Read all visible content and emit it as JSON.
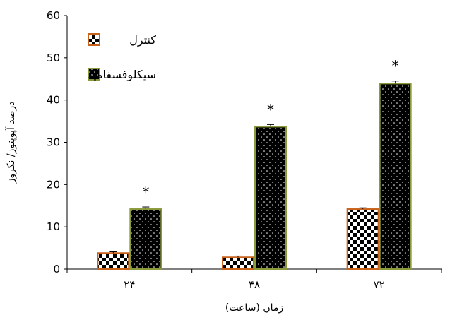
{
  "chart_data": {
    "type": "bar",
    "categories": [
      "۲۴",
      "۴۸",
      "۷۲"
    ],
    "xlabel": "زمان (ساعت)",
    "ylabel": "درصد آپوپتوز/ نکروز",
    "ylim": [
      0,
      60
    ],
    "yticks": [
      0,
      10,
      20,
      30,
      40,
      50,
      60
    ],
    "grid": false,
    "legend_position": "top-left",
    "series": [
      {
        "name": "کنترل",
        "values": [
          3.8,
          2.8,
          14.2
        ],
        "errors": [
          0.3,
          0.3,
          0.3
        ],
        "fill_pattern": "checker",
        "border_color": "#c8621a",
        "significance": [
          "",
          "",
          ""
        ]
      },
      {
        "name": "سیکلوفسفامید",
        "values": [
          14.2,
          33.7,
          43.9
        ],
        "errors": [
          0.5,
          0.5,
          0.6
        ],
        "fill_pattern": "dotted",
        "border_color": "#8a9a3a",
        "significance": [
          "*",
          "*",
          "*"
        ]
      }
    ]
  }
}
